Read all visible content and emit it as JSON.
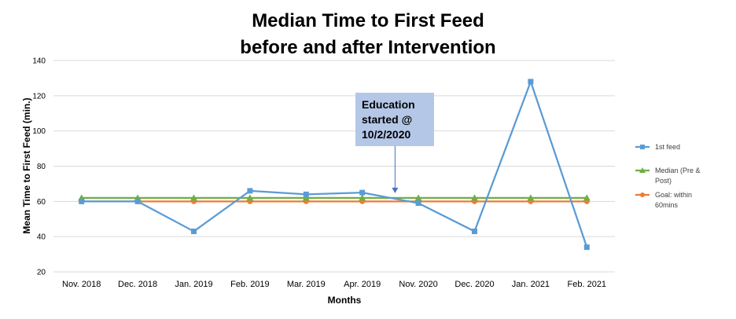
{
  "chart_data": {
    "type": "line",
    "title_lines": [
      "Median Time to First Feed",
      "before and after Intervention"
    ],
    "xlabel": "Months",
    "ylabel": "Mean Time to First Feed (min.)",
    "ylim": [
      20,
      140
    ],
    "yticks": [
      20,
      40,
      60,
      80,
      100,
      120,
      140
    ],
    "grid": "horizontal",
    "legend_position": "right",
    "categories": [
      "Nov. 2018",
      "Dec. 2018",
      "Jan. 2019",
      "Feb. 2019",
      "Mar. 2019",
      "Apr. 2019",
      "Nov. 2020",
      "Dec. 2020",
      "Jan. 2021",
      "Feb. 2021"
    ],
    "series": [
      {
        "name": "1st feed",
        "color": "#5b9bd5",
        "marker": "square",
        "values": [
          60,
          60,
          43,
          66,
          64,
          65,
          59,
          43,
          128,
          34
        ]
      },
      {
        "name": "Median (Pre & Post)",
        "color": "#70ad47",
        "marker": "triangle",
        "values": [
          62,
          62,
          62,
          62,
          62,
          62,
          62,
          62,
          62,
          62
        ]
      },
      {
        "name": "Goal: within 60mins",
        "color": "#ed7d31",
        "marker": "circle",
        "values": [
          60,
          60,
          60,
          60,
          60,
          60,
          60,
          60,
          60,
          60
        ]
      }
    ],
    "annotation": {
      "lines": [
        "Education",
        "started @",
        "10/2/2020"
      ],
      "points_to_value": 62,
      "between_categories": [
        "Apr. 2019",
        "Nov. 2020"
      ],
      "box_color": "#b4c7e7",
      "arrow_color": "#4472c4"
    }
  }
}
